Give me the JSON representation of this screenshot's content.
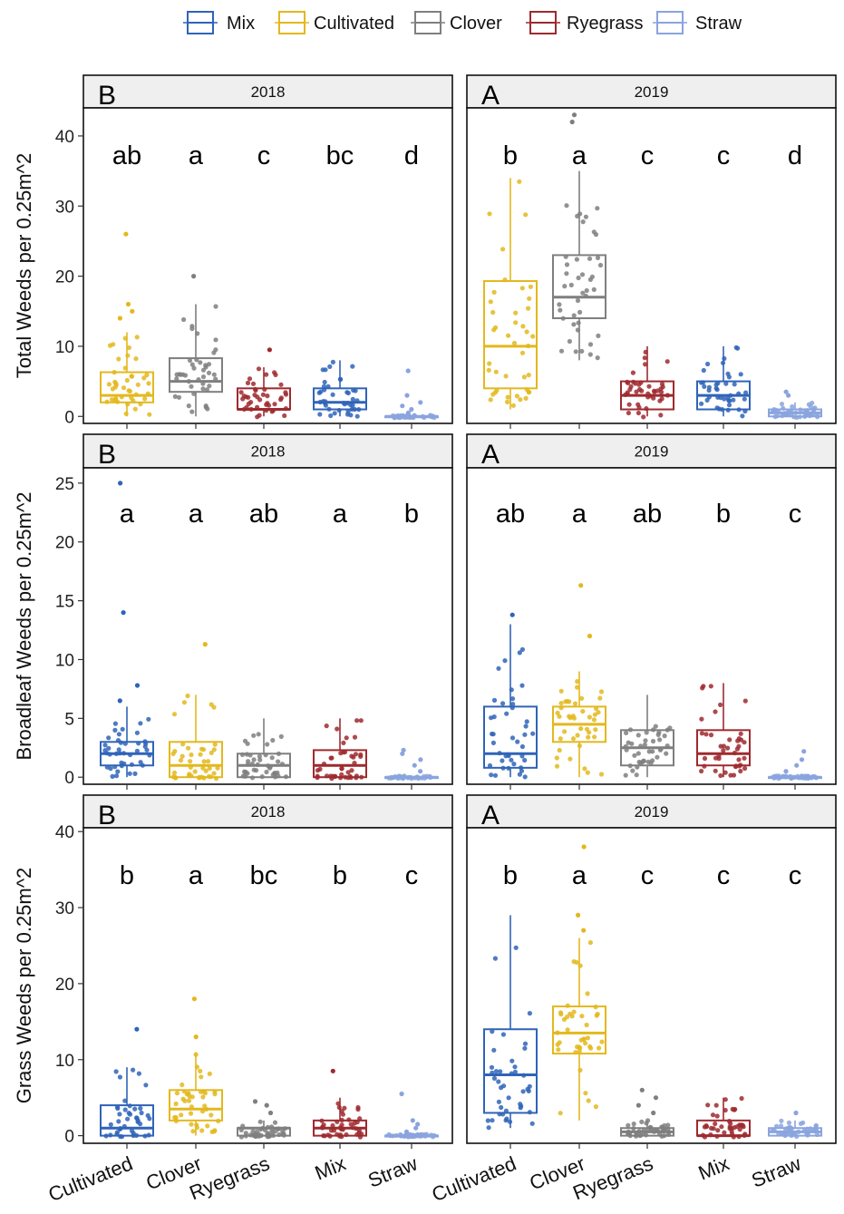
{
  "chart_data": {
    "type": "boxplot",
    "colors": {
      "Mix": "#2f64b8",
      "Cultivated": "#e3b81d",
      "Clover": "#7f7f7f",
      "Ryegrass": "#9e2a2f",
      "Straw": "#8aa4de"
    },
    "legend": {
      "position": "top",
      "entries": [
        "Mix",
        "Cultivated",
        "Clover",
        "Ryegrass",
        "Straw"
      ]
    },
    "panels": [
      {
        "row": 0,
        "col": 0,
        "strip": "2018",
        "panel_letter": "B",
        "ylabel": "Total Weeds per 0.25m^2",
        "ylim": [
          -1,
          44
        ],
        "yticks": [
          0,
          10,
          20,
          30,
          40
        ],
        "categories": [
          "Cultivated",
          "Clover",
          "Ryegrass",
          "Mix",
          "Straw"
        ],
        "box_colors": [
          "Cultivated",
          "Clover",
          "Ryegrass",
          "Mix",
          "Straw"
        ],
        "letters": [
          "ab",
          "a",
          "c",
          "bc",
          "d"
        ],
        "boxes": [
          {
            "q1": 2,
            "median": 3,
            "q3": 6.3,
            "lo": 0,
            "hi": 12,
            "outliers": [
              14,
              15,
              16,
              26
            ]
          },
          {
            "q1": 3.5,
            "median": 5,
            "q3": 8.3,
            "lo": 0,
            "hi": 16,
            "outliers": [
              20
            ]
          },
          {
            "q1": 1,
            "median": 1,
            "q3": 4,
            "lo": 0,
            "hi": 7,
            "outliers": [
              9.5
            ]
          },
          {
            "q1": 1,
            "median": 2,
            "q3": 4,
            "lo": 0,
            "hi": 8,
            "outliers": []
          },
          {
            "q1": 0,
            "median": 0,
            "q3": 0,
            "lo": 0,
            "hi": 0,
            "outliers": [
              0.5,
              1,
              1.5,
              2,
              3,
              6.5
            ]
          }
        ]
      },
      {
        "row": 0,
        "col": 1,
        "strip": "2019",
        "panel_letter": "A",
        "ylabel": "",
        "ylim": [
          -1,
          44
        ],
        "yticks": [],
        "categories": [
          "Cultivated",
          "Clover",
          "Ryegrass",
          "Mix",
          "Straw"
        ],
        "box_colors": [
          "Cultivated",
          "Clover",
          "Ryegrass",
          "Mix",
          "Straw"
        ],
        "letters": [
          "b",
          "a",
          "c",
          "c",
          "d"
        ],
        "boxes": [
          {
            "q1": 4,
            "median": 10,
            "q3": 19.3,
            "lo": 1,
            "hi": 34,
            "outliers": []
          },
          {
            "q1": 14,
            "median": 17,
            "q3": 23,
            "lo": 8,
            "hi": 35,
            "outliers": [
              42,
              43
            ]
          },
          {
            "q1": 1,
            "median": 3,
            "q3": 5,
            "lo": 0,
            "hi": 10,
            "outliers": []
          },
          {
            "q1": 1,
            "median": 3,
            "q3": 5,
            "lo": 0,
            "hi": 10,
            "outliers": []
          },
          {
            "q1": 0,
            "median": 0.5,
            "q3": 1,
            "lo": 0,
            "hi": 2,
            "outliers": [
              3,
              3.5
            ]
          }
        ]
      },
      {
        "row": 1,
        "col": 0,
        "strip": "2018",
        "panel_letter": "B",
        "ylabel": "Broadleaf Weeds per 0.25m^2",
        "ylim": [
          -0.6,
          26.3
        ],
        "yticks": [
          0,
          5,
          10,
          15,
          20,
          25
        ],
        "categories": [
          "Cultivated",
          "Clover",
          "Ryegrass",
          "Mix",
          "Straw"
        ],
        "box_colors": [
          "Mix",
          "Cultivated",
          "Clover",
          "Ryegrass",
          "Straw"
        ],
        "letters": [
          "a",
          "a",
          "ab",
          "a",
          "b"
        ],
        "boxes": [
          {
            "q1": 1,
            "median": 2,
            "q3": 3,
            "lo": 0,
            "hi": 6,
            "outliers": [
              6.5,
              7.8,
              14,
              25
            ]
          },
          {
            "q1": 0,
            "median": 1,
            "q3": 3,
            "lo": 0,
            "hi": 7,
            "outliers": [
              11.3
            ]
          },
          {
            "q1": 0,
            "median": 1,
            "q3": 2,
            "lo": 0,
            "hi": 5,
            "outliers": []
          },
          {
            "q1": 0,
            "median": 1,
            "q3": 2.3,
            "lo": 0,
            "hi": 5,
            "outliers": []
          },
          {
            "q1": 0,
            "median": 0,
            "q3": 0,
            "lo": 0,
            "hi": 0,
            "outliers": [
              0.5,
              1,
              1.5,
              2,
              2.3
            ]
          }
        ]
      },
      {
        "row": 1,
        "col": 1,
        "strip": "2019",
        "panel_letter": "A",
        "ylabel": "",
        "ylim": [
          -0.6,
          26.3
        ],
        "yticks": [],
        "categories": [
          "Cultivated",
          "Clover",
          "Ryegrass",
          "Mix",
          "Straw"
        ],
        "box_colors": [
          "Mix",
          "Cultivated",
          "Clover",
          "Ryegrass",
          "Straw"
        ],
        "letters": [
          "ab",
          "a",
          "ab",
          "b",
          "c"
        ],
        "boxes": [
          {
            "q1": 0.8,
            "median": 2,
            "q3": 6,
            "lo": 0,
            "hi": 13,
            "outliers": [
              13.8
            ]
          },
          {
            "q1": 3,
            "median": 4.5,
            "q3": 6,
            "lo": 0,
            "hi": 9,
            "outliers": [
              12,
              16.3
            ]
          },
          {
            "q1": 1,
            "median": 2.5,
            "q3": 4,
            "lo": 0,
            "hi": 7,
            "outliers": []
          },
          {
            "q1": 1,
            "median": 2,
            "q3": 4,
            "lo": 0,
            "hi": 8,
            "outliers": []
          },
          {
            "q1": 0,
            "median": 0,
            "q3": 0,
            "lo": 0,
            "hi": 0,
            "outliers": [
              0.5,
              1,
              1.5,
              2.2
            ]
          }
        ]
      },
      {
        "row": 2,
        "col": 0,
        "strip": "2018",
        "panel_letter": "B",
        "ylabel": "Grass Weeds per 0.25m^2",
        "ylim": [
          -1,
          40.5
        ],
        "yticks": [
          0,
          10,
          20,
          30,
          40
        ],
        "categories": [
          "Cultivated",
          "Clover",
          "Ryegrass",
          "Mix",
          "Straw"
        ],
        "box_colors": [
          "Mix",
          "Cultivated",
          "Clover",
          "Ryegrass",
          "Straw"
        ],
        "letters": [
          "b",
          "a",
          "bc",
          "b",
          "c"
        ],
        "boxes": [
          {
            "q1": 0,
            "median": 1,
            "q3": 4,
            "lo": 0,
            "hi": 9,
            "outliers": [
              14
            ]
          },
          {
            "q1": 2,
            "median": 3.5,
            "q3": 6,
            "lo": 0,
            "hi": 11,
            "outliers": [
              13,
              18
            ]
          },
          {
            "q1": 0,
            "median": 1,
            "q3": 1,
            "lo": 0,
            "hi": 2,
            "outliers": [
              3,
              4,
              4.5
            ]
          },
          {
            "q1": 0,
            "median": 1,
            "q3": 2,
            "lo": 0,
            "hi": 5,
            "outliers": [
              8.5
            ]
          },
          {
            "q1": 0,
            "median": 0,
            "q3": 0,
            "lo": 0,
            "hi": 0,
            "outliers": [
              0.5,
              1,
              1.5,
              2,
              5.5
            ]
          }
        ]
      },
      {
        "row": 2,
        "col": 1,
        "strip": "2019",
        "panel_letter": "A",
        "ylabel": "",
        "ylim": [
          -1,
          40.5
        ],
        "yticks": [],
        "categories": [
          "Cultivated",
          "Clover",
          "Ryegrass",
          "Mix",
          "Straw"
        ],
        "box_colors": [
          "Mix",
          "Cultivated",
          "Clover",
          "Ryegrass",
          "Straw"
        ],
        "letters": [
          "b",
          "a",
          "c",
          "c",
          "c"
        ],
        "boxes": [
          {
            "q1": 3,
            "median": 8,
            "q3": 14,
            "lo": 1,
            "hi": 29,
            "outliers": []
          },
          {
            "q1": 10.8,
            "median": 13.5,
            "q3": 17,
            "lo": 2,
            "hi": 26,
            "outliers": [
              27,
              29,
              38
            ]
          },
          {
            "q1": 0,
            "median": 0.5,
            "q3": 1,
            "lo": 0,
            "hi": 2,
            "outliers": [
              3,
              4,
              5,
              6
            ]
          },
          {
            "q1": 0,
            "median": 0,
            "q3": 2,
            "lo": 0,
            "hi": 5,
            "outliers": []
          },
          {
            "q1": 0,
            "median": 0.5,
            "q3": 1,
            "lo": 0,
            "hi": 2,
            "outliers": [
              3
            ]
          }
        ]
      }
    ]
  }
}
